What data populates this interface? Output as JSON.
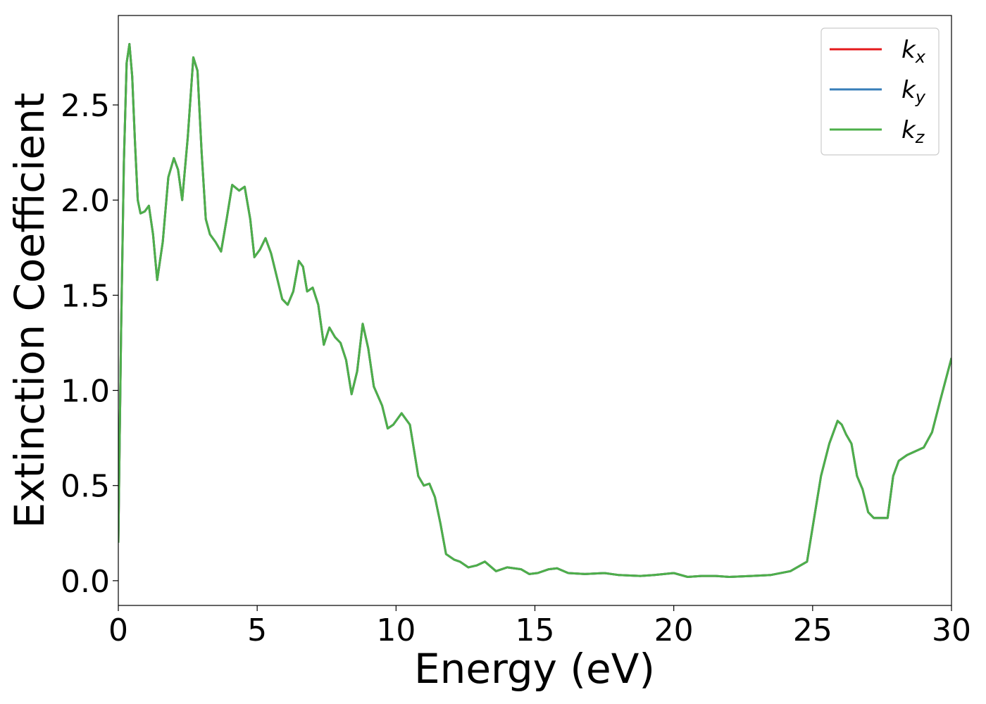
{
  "chart_data": {
    "type": "line",
    "xlabel": "Energy (eV)",
    "ylabel": "Extinction Coefficient",
    "xlim": [
      0,
      30
    ],
    "ylim": [
      -0.13,
      2.97
    ],
    "xticks": [
      0,
      5,
      10,
      15,
      20,
      25,
      30
    ],
    "xtick_labels": [
      "0",
      "5",
      "10",
      "15",
      "20",
      "25",
      "30"
    ],
    "yticks": [
      0.0,
      0.5,
      1.0,
      1.5,
      2.0,
      2.5
    ],
    "ytick_labels": [
      "0.0",
      "0.5",
      "1.0",
      "1.5",
      "2.0",
      "2.5"
    ],
    "grid": false,
    "legend_position": "top-right",
    "series": [
      {
        "name": "kx",
        "legend_main": "k",
        "legend_sub": "x",
        "color": "#e41a1c"
      },
      {
        "name": "ky",
        "legend_main": "k",
        "legend_sub": "y",
        "color": "#377eb8"
      },
      {
        "name": "kz",
        "legend_main": "k",
        "legend_sub": "z",
        "color": "#4daf4a"
      }
    ],
    "x": [
      0,
      0.1,
      0.2,
      0.3,
      0.4,
      0.5,
      0.6,
      0.7,
      0.8,
      0.95,
      1.1,
      1.25,
      1.4,
      1.6,
      1.8,
      2.0,
      2.15,
      2.3,
      2.5,
      2.7,
      2.85,
      3.0,
      3.15,
      3.3,
      3.5,
      3.7,
      3.9,
      4.1,
      4.35,
      4.55,
      4.75,
      4.9,
      5.1,
      5.3,
      5.5,
      5.7,
      5.9,
      6.1,
      6.3,
      6.5,
      6.65,
      6.8,
      7.0,
      7.2,
      7.4,
      7.6,
      7.8,
      8.0,
      8.2,
      8.4,
      8.6,
      8.8,
      9.0,
      9.2,
      9.5,
      9.7,
      9.9,
      10.2,
      10.5,
      10.8,
      11.0,
      11.2,
      11.4,
      11.6,
      11.8,
      12.1,
      12.3,
      12.6,
      12.9,
      13.2,
      13.6,
      14.0,
      14.5,
      14.8,
      15.1,
      15.5,
      15.8,
      16.2,
      16.8,
      17.5,
      18.0,
      18.8,
      19.3,
      20.0,
      20.5,
      21.0,
      21.5,
      22.0,
      22.8,
      23.5,
      24.2,
      24.8,
      25.0,
      25.3,
      25.6,
      25.9,
      26.05,
      26.2,
      26.4,
      26.6,
      26.8,
      27.0,
      27.2,
      27.4,
      27.7,
      27.9,
      28.1,
      28.4,
      28.7,
      29.0,
      29.3,
      29.6,
      30.0
    ],
    "values": [
      0.2,
      1.3,
      2.2,
      2.72,
      2.82,
      2.65,
      2.3,
      2.0,
      1.93,
      1.94,
      1.97,
      1.82,
      1.58,
      1.78,
      2.12,
      2.22,
      2.16,
      2.0,
      2.33,
      2.75,
      2.68,
      2.25,
      1.9,
      1.82,
      1.78,
      1.73,
      1.9,
      2.08,
      2.05,
      2.07,
      1.9,
      1.7,
      1.74,
      1.8,
      1.72,
      1.6,
      1.48,
      1.45,
      1.52,
      1.68,
      1.65,
      1.52,
      1.54,
      1.45,
      1.24,
      1.33,
      1.28,
      1.25,
      1.16,
      0.98,
      1.1,
      1.35,
      1.22,
      1.02,
      0.92,
      0.8,
      0.82,
      0.88,
      0.82,
      0.55,
      0.5,
      0.51,
      0.44,
      0.3,
      0.14,
      0.11,
      0.1,
      0.07,
      0.08,
      0.1,
      0.05,
      0.07,
      0.06,
      0.035,
      0.04,
      0.06,
      0.065,
      0.04,
      0.035,
      0.04,
      0.03,
      0.025,
      0.03,
      0.04,
      0.02,
      0.025,
      0.025,
      0.02,
      0.025,
      0.03,
      0.05,
      0.1,
      0.28,
      0.55,
      0.72,
      0.84,
      0.82,
      0.77,
      0.72,
      0.55,
      0.48,
      0.36,
      0.33,
      0.33,
      0.33,
      0.55,
      0.63,
      0.66,
      0.68,
      0.7,
      0.78,
      0.95,
      1.17
    ]
  }
}
